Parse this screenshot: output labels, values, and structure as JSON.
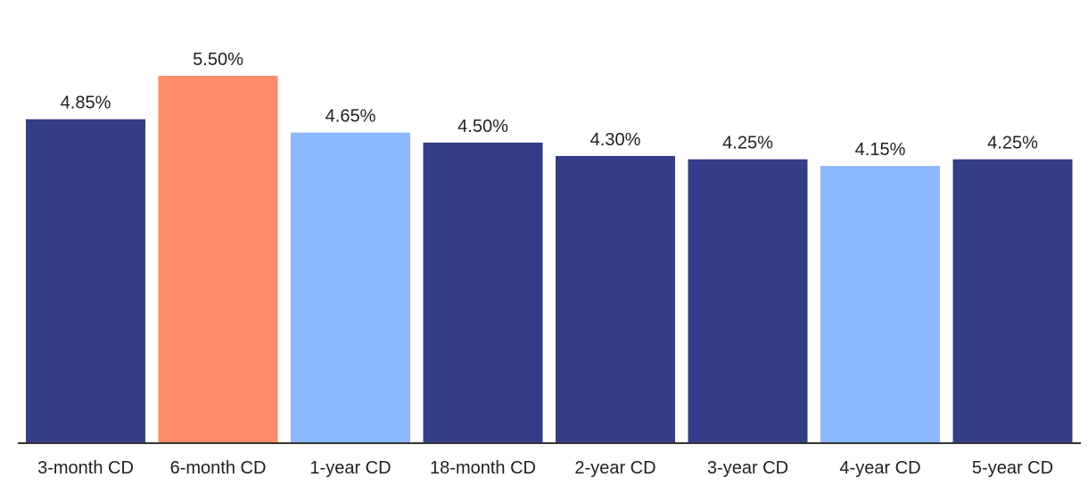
{
  "chart_data": {
    "type": "bar",
    "categories": [
      "3-month CD",
      "6-month CD",
      "1-year CD",
      "18-month CD",
      "2-year CD",
      "3-year CD",
      "4-year CD",
      "5-year CD"
    ],
    "values": [
      4.85,
      5.5,
      4.65,
      4.5,
      4.3,
      4.25,
      4.15,
      4.25
    ],
    "value_labels": [
      "4.85%",
      "5.50%",
      "4.65%",
      "4.50%",
      "4.30%",
      "4.25%",
      "4.15%",
      "4.25%"
    ],
    "bar_colors": [
      "#333d8a",
      "#ff8c69",
      "#8bb8ff",
      "#333d8a",
      "#333d8a",
      "#333d8a",
      "#8bb8ff",
      "#333d8a"
    ],
    "ylim": [
      0,
      5.5
    ],
    "grid": false,
    "legend": "none"
  },
  "colors": {
    "baseline": "#333333",
    "text": "#1f1f1f"
  }
}
